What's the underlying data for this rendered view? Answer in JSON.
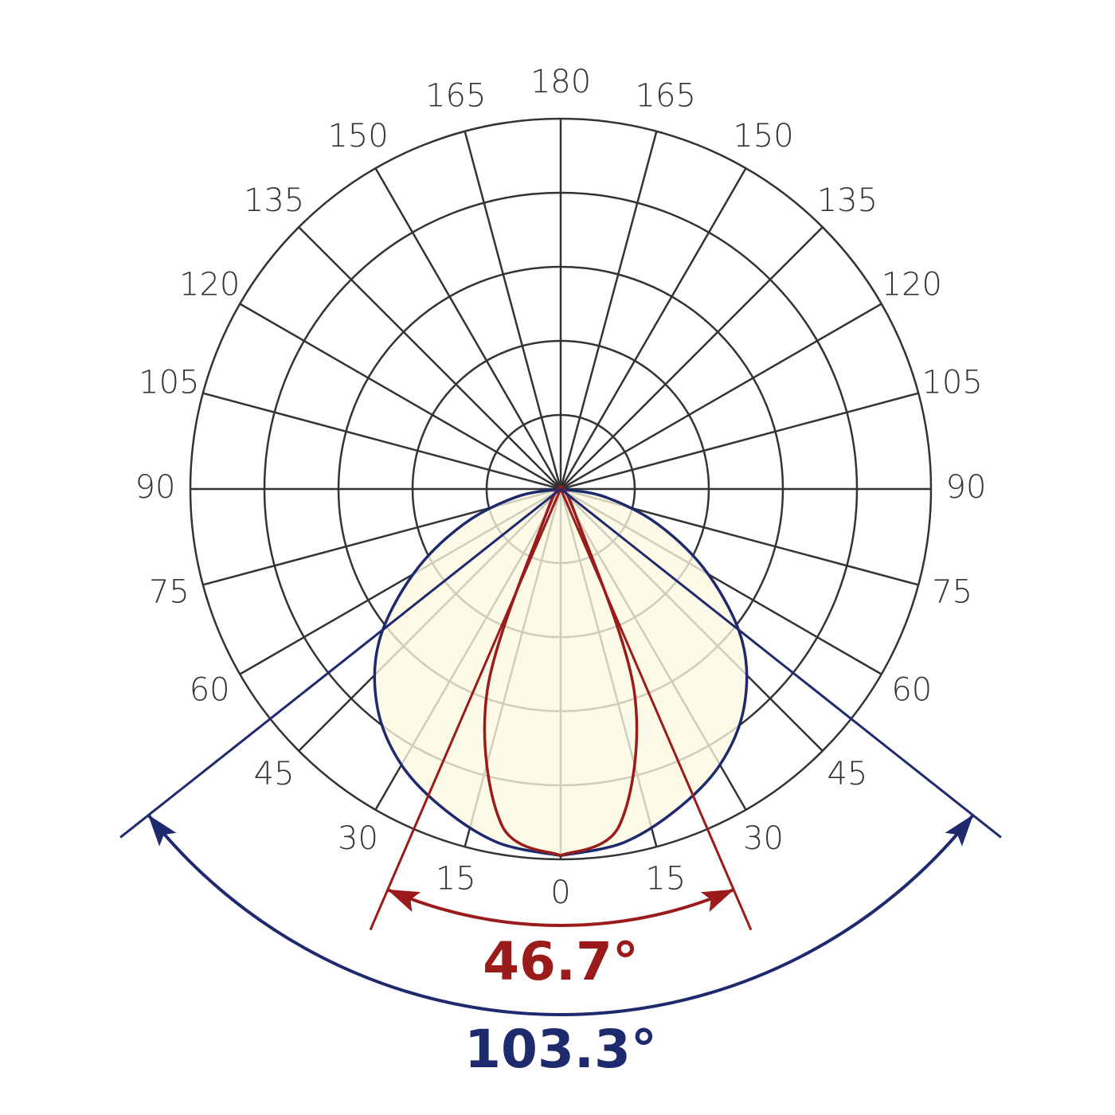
{
  "chart_data": {
    "type": "polar",
    "angles": [
      0,
      10,
      20,
      30,
      40,
      50,
      60,
      70,
      80,
      90
    ],
    "angle_ticks": [
      0,
      15,
      30,
      45,
      60,
      75,
      90,
      105,
      120,
      135,
      150,
      165,
      180
    ],
    "rlim": [
      0,
      5
    ],
    "rticks": [
      1,
      2,
      3,
      4,
      5
    ],
    "series": [
      {
        "color": "#1f2a6e",
        "fill": "#fdf8e0",
        "values": [
          4.95,
          4.85,
          4.6,
          4.3,
          3.85,
          3.2,
          2.3,
          1.4,
          0.6,
          0
        ]
      },
      {
        "color": "#9b1b1b",
        "values": [
          4.95,
          4.6,
          2.9,
          0.4,
          0,
          0,
          0,
          0,
          0,
          0
        ]
      }
    ],
    "beam_angles": [
      {
        "value": 46.7,
        "label": "46.7°",
        "color": "#9b1b1b"
      },
      {
        "value": 103.3,
        "label": "103.3°",
        "color": "#1f2a6e"
      }
    ]
  }
}
